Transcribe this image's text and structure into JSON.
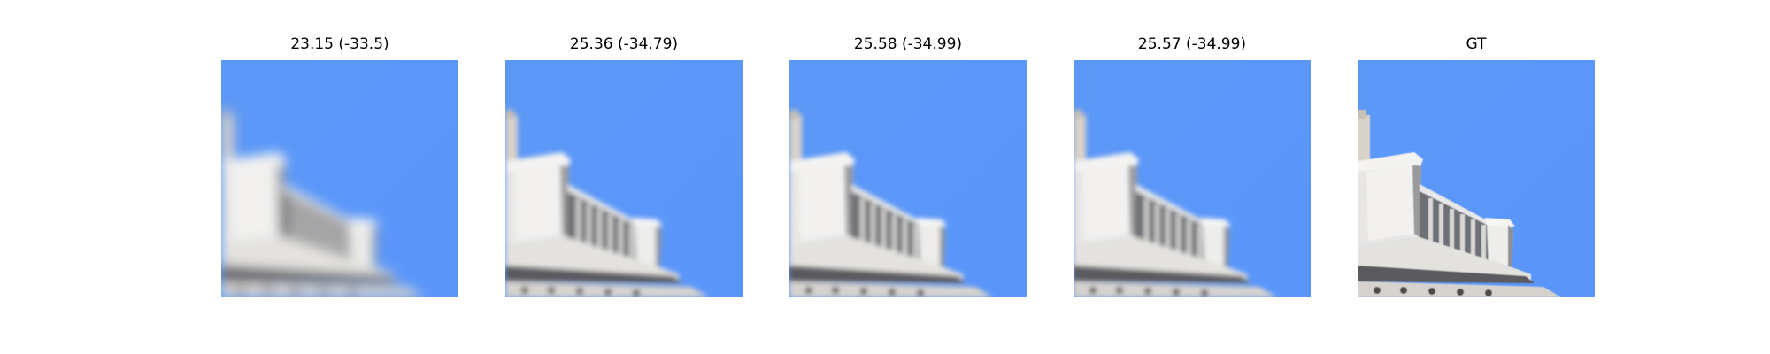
{
  "panels": [
    {
      "title": "23.15 (-33.5)",
      "blur": 6.5
    },
    {
      "title": "25.36 (-34.79)",
      "blur": 3.0
    },
    {
      "title": "25.58 (-34.99)",
      "blur": 2.6
    },
    {
      "title": "25.57 (-34.99)",
      "blur": 2.6
    },
    {
      "title": "GT",
      "blur": 0.4
    }
  ],
  "colors": {
    "sky": "#5b98f8",
    "stone": "#e8e6e4",
    "shadow": "#5a5a5e"
  }
}
